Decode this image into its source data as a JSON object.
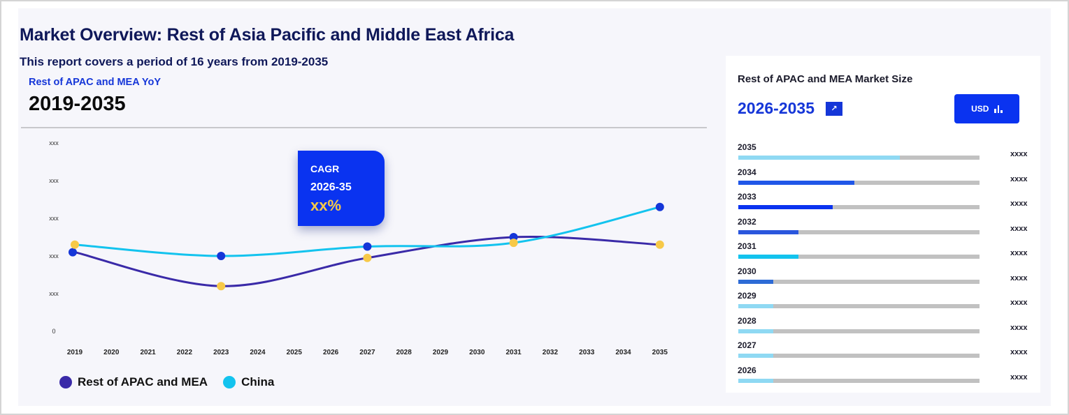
{
  "header": {
    "title": "Market Overview: Rest of Asia Pacific and Middle East Africa",
    "subtitle": "This report covers a period of 16 years from 2019-2035",
    "yoy_label": "Rest of APAC and MEA YoY",
    "yoy_range": "2019-2035"
  },
  "cagr": {
    "label": "CAGR",
    "period": "2026-35",
    "value": "xx%"
  },
  "chart_data": {
    "type": "line",
    "title": "Rest of APAC and MEA YoY",
    "xlabel": "",
    "ylabel": "",
    "x": [
      "2019",
      "2020",
      "2021",
      "2022",
      "2023",
      "2024",
      "2025",
      "2026",
      "2027",
      "2028",
      "2029",
      "2030",
      "2031",
      "2032",
      "2033",
      "2034",
      "2035"
    ],
    "y_tick_labels": [
      "0",
      "xxx",
      "xxx",
      "xxx",
      "xxx",
      "xxx"
    ],
    "ylim": [
      0,
      5
    ],
    "series": [
      {
        "name": "Rest of APAC and MEA",
        "color": "#3a2aa8",
        "points": [
          {
            "x": "2019",
            "y": 2.1
          },
          {
            "x": "2023",
            "y": 1.2
          },
          {
            "x": "2027",
            "y": 1.95
          },
          {
            "x": "2031",
            "y": 2.5
          },
          {
            "x": "2035",
            "y": 2.3
          }
        ]
      },
      {
        "name": "China",
        "color": "#13c3ee",
        "points": [
          {
            "x": "2019",
            "y": 2.3
          },
          {
            "x": "2023",
            "y": 2.0
          },
          {
            "x": "2027",
            "y": 2.25
          },
          {
            "x": "2031",
            "y": 2.35
          },
          {
            "x": "2035",
            "y": 3.3
          }
        ]
      }
    ],
    "legend": [
      {
        "label": "Rest of APAC and MEA",
        "color": "#3a2aa8"
      },
      {
        "label": "China",
        "color": "#13c3ee"
      }
    ]
  },
  "side_panel": {
    "title": "Rest of APAC and MEA Market Size",
    "range": "2026-2035",
    "currency_button": "USD",
    "rows": [
      {
        "year": "2035",
        "value": "xxxx",
        "fill": 0.67,
        "color": "#8fd9f3"
      },
      {
        "year": "2034",
        "value": "xxxx",
        "fill": 0.48,
        "color": "#2057e8"
      },
      {
        "year": "2033",
        "value": "xxxx",
        "fill": 0.39,
        "color": "#0a33f0"
      },
      {
        "year": "2032",
        "value": "xxxx",
        "fill": 0.25,
        "color": "#2a56dd"
      },
      {
        "year": "2031",
        "value": "xxxx",
        "fill": 0.25,
        "color": "#13c3ee"
      },
      {
        "year": "2030",
        "value": "xxxx",
        "fill": 0.145,
        "color": "#2d6bd6"
      },
      {
        "year": "2029",
        "value": "xxxx",
        "fill": 0.145,
        "color": "#8fd9f3"
      },
      {
        "year": "2028",
        "value": "xxxx",
        "fill": 0.145,
        "color": "#8fd9f3"
      },
      {
        "year": "2027",
        "value": "xxxx",
        "fill": 0.145,
        "color": "#8fd9f3"
      },
      {
        "year": "2026",
        "value": "xxxx",
        "fill": 0.145,
        "color": "#8fd9f3"
      }
    ]
  }
}
